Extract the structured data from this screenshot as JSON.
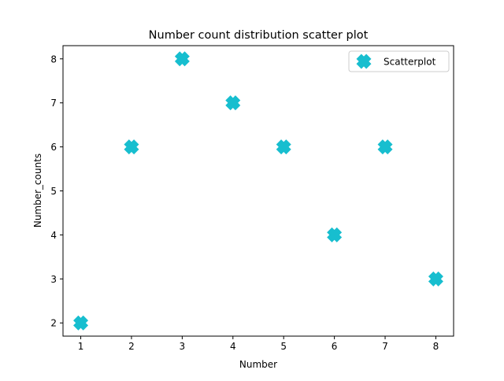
{
  "chart_data": {
    "type": "scatter",
    "title": "Number count distribution scatter plot",
    "xlabel": "Number",
    "ylabel": "Number_counts",
    "xlim": [
      0.65,
      8.35
    ],
    "ylim": [
      1.7,
      8.3
    ],
    "xticks": [
      1,
      2,
      3,
      4,
      5,
      6,
      7,
      8
    ],
    "yticks": [
      2,
      3,
      4,
      5,
      6,
      7,
      8
    ],
    "grid": false,
    "legend_position": "top-right",
    "marker": "X",
    "series": [
      {
        "name": "Scatterplot",
        "color": "#17becf",
        "x": [
          1,
          2,
          3,
          4,
          5,
          6,
          7,
          8
        ],
        "y": [
          2,
          6,
          8,
          7,
          6,
          4,
          6,
          3
        ]
      }
    ]
  }
}
